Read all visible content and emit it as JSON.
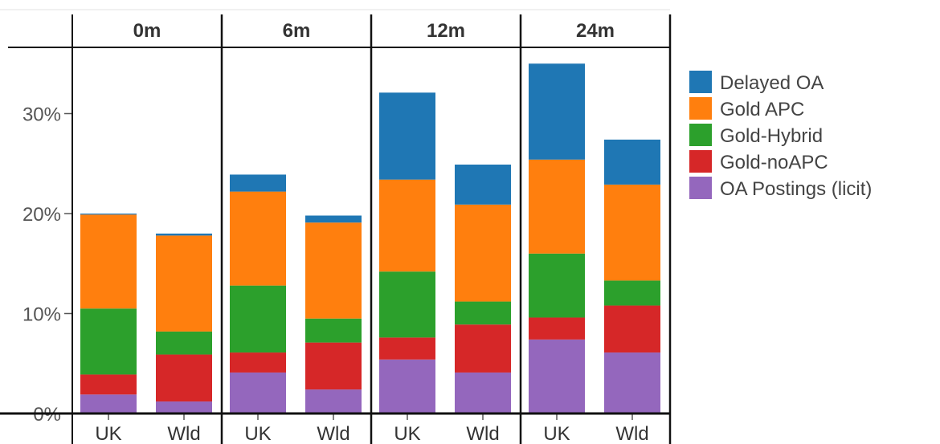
{
  "chart_data": {
    "type": "bar",
    "stacked": true,
    "panels": [
      "0m",
      "6m",
      "12m",
      "24m"
    ],
    "categories": [
      "UK",
      "Wld"
    ],
    "y_ticks": [
      "0%",
      "10%",
      "20%",
      "30%"
    ],
    "y_tick_values": [
      0,
      10,
      20,
      30
    ],
    "ylim": [
      -0.6,
      36.5
    ],
    "grid": false,
    "legend_position": "right",
    "series": [
      {
        "name": "OA Postings (licit)",
        "color": "#9467bd",
        "values": {
          "0m": [
            1.9,
            1.2
          ],
          "6m": [
            4.1,
            2.4
          ],
          "12m": [
            5.4,
            4.1
          ],
          "24m": [
            7.4,
            6.1
          ]
        }
      },
      {
        "name": "Gold-noAPC",
        "color": "#d62728",
        "values": {
          "0m": [
            2.0,
            4.7
          ],
          "6m": [
            2.0,
            4.7
          ],
          "12m": [
            2.2,
            4.8
          ],
          "24m": [
            2.2,
            4.7
          ]
        }
      },
      {
        "name": "Gold-Hybrid",
        "color": "#2ca02c",
        "values": {
          "0m": [
            6.6,
            2.3
          ],
          "6m": [
            6.7,
            2.4
          ],
          "12m": [
            6.6,
            2.3
          ],
          "24m": [
            6.4,
            2.5
          ]
        }
      },
      {
        "name": "Gold APC",
        "color": "#ff7f0e",
        "values": {
          "0m": [
            9.4,
            9.6
          ],
          "6m": [
            9.4,
            9.6
          ],
          "12m": [
            9.2,
            9.7
          ],
          "24m": [
            9.4,
            9.6
          ]
        }
      },
      {
        "name": "Delayed OA",
        "color": "#1f77b4",
        "values": {
          "0m": [
            0.1,
            0.2
          ],
          "6m": [
            1.7,
            0.7
          ],
          "12m": [
            8.7,
            4.0
          ],
          "24m": [
            9.6,
            4.5
          ]
        }
      }
    ],
    "legend_order": [
      "Delayed OA",
      "Gold APC",
      "Gold-Hybrid",
      "Gold-noAPC",
      "OA Postings (licit)"
    ]
  }
}
